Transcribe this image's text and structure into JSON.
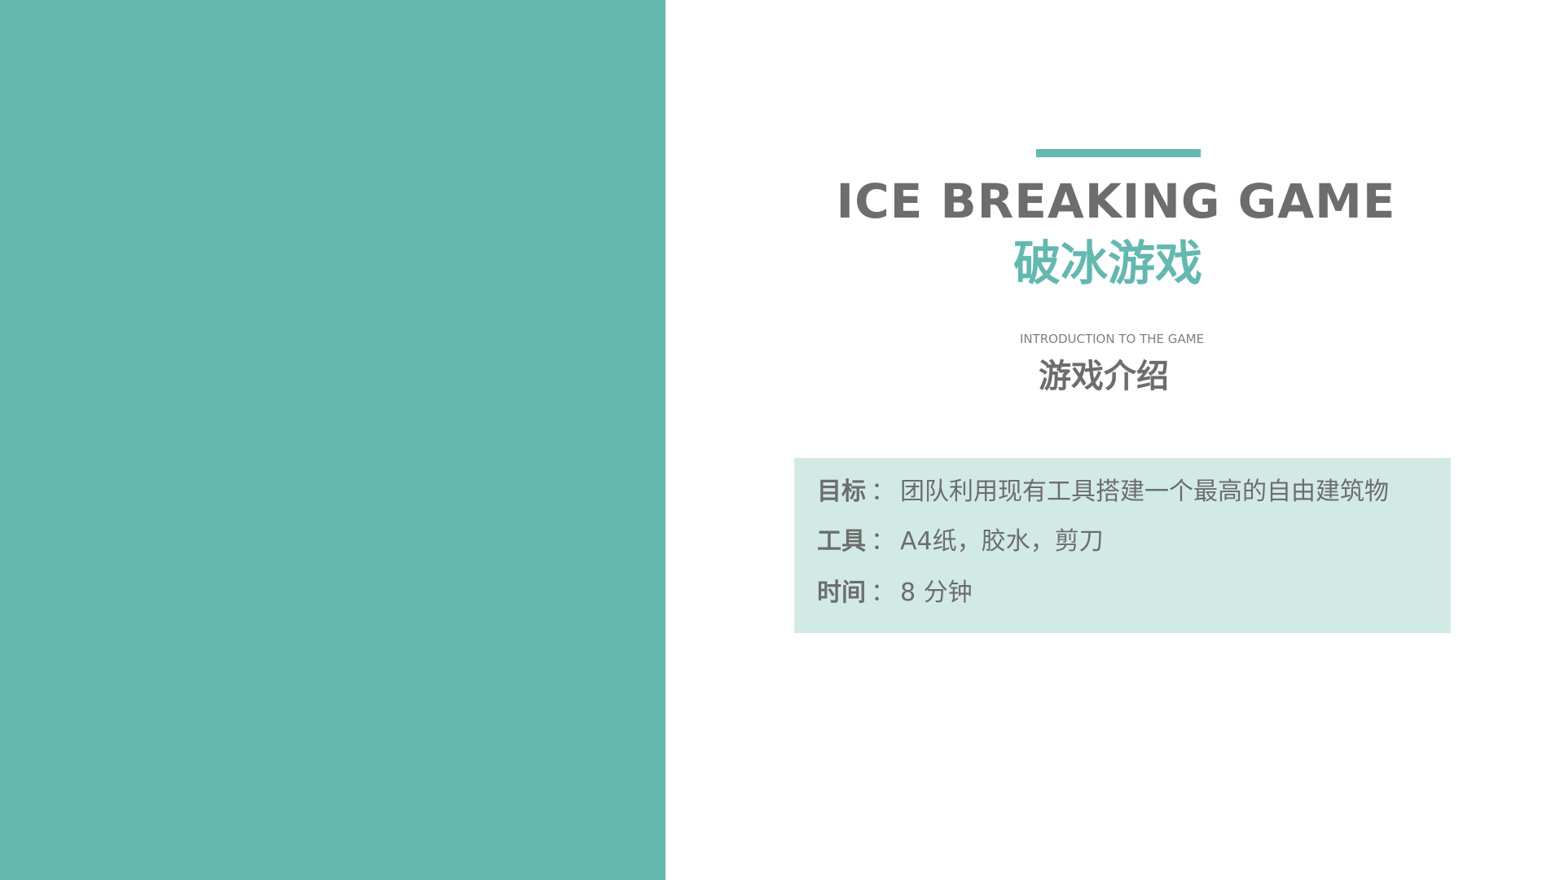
{
  "colors": {
    "accent": "#64b8b0",
    "info_bg": "#d2eae6",
    "text_gray": "#6d6d6d"
  },
  "slide": {
    "title_en": "ICE BREAKING GAME",
    "title_zh": "破冰游戏",
    "subtitle_en": "INTRODUCTION TO THE GAME",
    "subtitle_zh": "游戏介绍",
    "info": [
      {
        "key": "目标",
        "sep": "：",
        "value": "团队利用现有工具搭建一个最高的自由建筑物"
      },
      {
        "key": "工具",
        "sep": "：",
        "value": "A4纸，胶水，剪刀"
      },
      {
        "key": "时间",
        "sep": "：",
        "value": "8 分钟"
      }
    ]
  }
}
